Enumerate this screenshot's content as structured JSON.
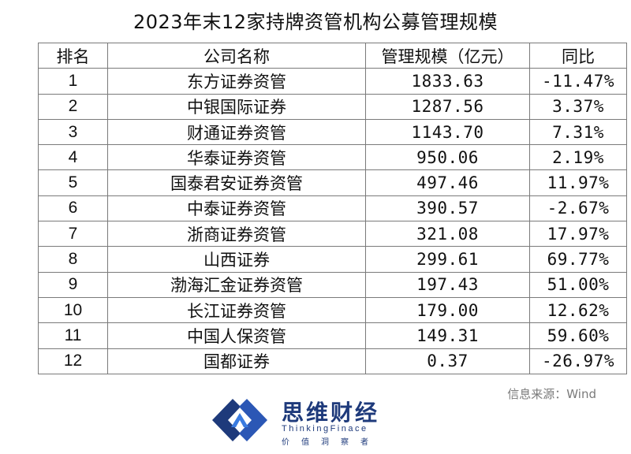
{
  "title": "2023年末12家持牌资管机构公募管理规模",
  "table": {
    "headers": [
      "排名",
      "公司名称",
      "管理规模（亿元）",
      "同比"
    ],
    "rows": [
      {
        "rank": "1",
        "name": "东方证券资管",
        "aum": "1833.63",
        "yoy": "-11.47%"
      },
      {
        "rank": "2",
        "name": "中银国际证券",
        "aum": "1287.56",
        "yoy": "3.37%"
      },
      {
        "rank": "3",
        "name": "财通证券资管",
        "aum": "1143.70",
        "yoy": "7.31%"
      },
      {
        "rank": "4",
        "name": "华泰证券资管",
        "aum": "950.06",
        "yoy": "2.19%"
      },
      {
        "rank": "5",
        "name": "国泰君安证券资管",
        "aum": "497.46",
        "yoy": "11.97%"
      },
      {
        "rank": "6",
        "name": "中泰证券资管",
        "aum": "390.57",
        "yoy": "-2.67%"
      },
      {
        "rank": "7",
        "name": "浙商证券资管",
        "aum": "321.08",
        "yoy": "17.97%"
      },
      {
        "rank": "8",
        "name": "山西证券",
        "aum": "299.61",
        "yoy": "69.77%"
      },
      {
        "rank": "9",
        "name": "渤海汇金证券资管",
        "aum": "197.43",
        "yoy": "51.00%"
      },
      {
        "rank": "10",
        "name": "长江证券资管",
        "aum": "179.00",
        "yoy": "12.62%"
      },
      {
        "rank": "11",
        "name": "中国人保资管",
        "aum": "149.31",
        "yoy": "59.60%"
      },
      {
        "rank": "12",
        "name": "国都证券",
        "aum": "0.37",
        "yoy": "-26.97%"
      }
    ]
  },
  "source": "信息来源：Wind",
  "logo": {
    "brand": "思维财经",
    "slogan_en": "ThinkingFinace",
    "slogan_cn": [
      "价",
      "值",
      "洞",
      "察",
      "者"
    ],
    "color": "#1e3a7b",
    "icon": "logo-mark-icon"
  }
}
